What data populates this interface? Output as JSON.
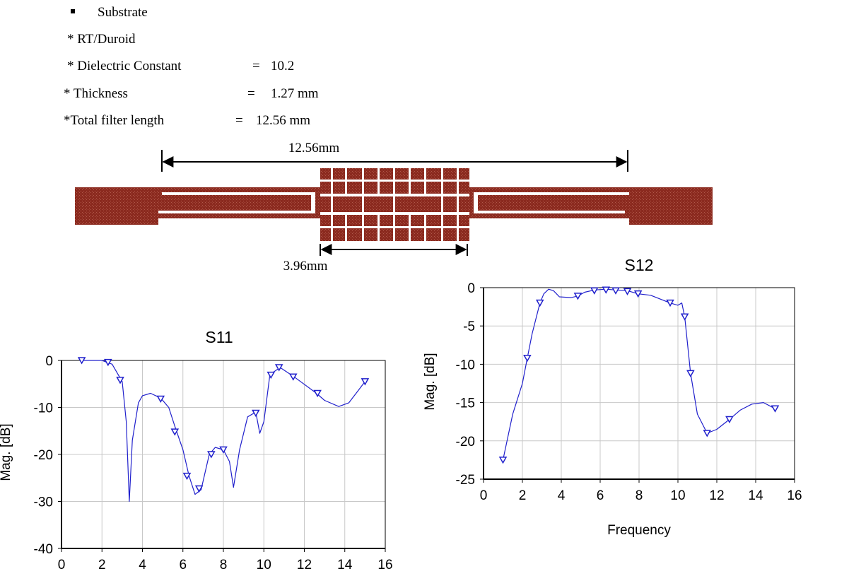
{
  "specs": {
    "heading": "Substrate",
    "rows": [
      {
        "label": "* RT/Duroid",
        "eq": "",
        "value": ""
      },
      {
        "label": "* Dielectric Constant",
        "eq": "=",
        "value": "10.2"
      },
      {
        "label": "* Thickness",
        "eq": "=",
        "value": "1.27 mm"
      },
      {
        "label": "*Total filter length",
        "eq": "=",
        "value": "12.56 mm"
      }
    ]
  },
  "layout": {
    "total_length_label": "12.56mm",
    "center_length_label": "3.96mm",
    "trace_color": "#8B2A1F"
  },
  "chart_data": [
    {
      "type": "line",
      "title": "S11",
      "xlabel": "",
      "ylabel": "Mag. [dB]",
      "xlim": [
        0,
        16
      ],
      "ylim": [
        -40,
        0
      ],
      "xticks": [
        "0",
        "2",
        "4",
        "6",
        "8",
        "10",
        "12",
        "14",
        "16"
      ],
      "yticks": [
        "0",
        "-10",
        "-20",
        "-30",
        "-40"
      ],
      "grid": true,
      "color": "#2020CC",
      "x": [
        1.0,
        2.0,
        2.5,
        3.0,
        3.2,
        3.35,
        3.5,
        3.8,
        4.0,
        4.4,
        4.9,
        5.3,
        5.6,
        6.0,
        6.3,
        6.6,
        6.9,
        7.3,
        7.6,
        8.0,
        8.3,
        8.5,
        8.8,
        9.2,
        9.6,
        9.8,
        10.0,
        10.3,
        10.8,
        11.5,
        12.6,
        13.0,
        13.7,
        14.2,
        15.0
      ],
      "y": [
        0,
        0,
        -0.8,
        -4.5,
        -13,
        -30,
        -17,
        -9,
        -7.5,
        -7,
        -8,
        -10,
        -14,
        -19,
        -24.5,
        -28.5,
        -27.5,
        -20,
        -18.5,
        -19,
        -21.5,
        -27,
        -19,
        -12,
        -11,
        -15.5,
        -13,
        -3,
        -1.5,
        -3.5,
        -7,
        -8.5,
        -9.8,
        -9,
        -4.5
      ],
      "markers_x": [
        1.0,
        2.3,
        2.9,
        4.9,
        5.6,
        6.2,
        6.8,
        7.4,
        8.0,
        9.6,
        10.35,
        10.75,
        11.45,
        12.65,
        15.0
      ],
      "markers_y": [
        0,
        -0.4,
        -4.2,
        -8.2,
        -15.2,
        -24.6,
        -27.3,
        -20,
        -19,
        -11.2,
        -3.1,
        -1.5,
        -3.5,
        -7,
        -4.5
      ]
    },
    {
      "type": "line",
      "title": "S12",
      "xlabel": "Frequency",
      "ylabel": "Mag. [dB]",
      "xlim": [
        0,
        16
      ],
      "ylim": [
        -25,
        0
      ],
      "xticks": [
        "0",
        "2",
        "4",
        "6",
        "8",
        "10",
        "12",
        "14",
        "16"
      ],
      "yticks": [
        "0",
        "-5",
        "-10",
        "-15",
        "-20",
        "-25"
      ],
      "grid": true,
      "color": "#2020CC",
      "x": [
        1.0,
        1.5,
        2.0,
        2.25,
        2.5,
        2.9,
        3.1,
        3.35,
        3.6,
        3.9,
        4.5,
        4.85,
        5.2,
        5.7,
        6.3,
        6.8,
        7.4,
        7.95,
        8.6,
        9.6,
        10.0,
        10.2,
        10.35,
        10.65,
        11.0,
        11.5,
        12.0,
        12.65,
        13.2,
        13.8,
        14.4,
        15.0
      ],
      "y": [
        -22.5,
        -16.5,
        -12.5,
        -9.2,
        -6,
        -2,
        -0.8,
        -0.2,
        -0.4,
        -1.2,
        -1.3,
        -1.1,
        -0.6,
        -0.3,
        -0.2,
        -0.3,
        -0.4,
        -0.8,
        -1.0,
        -2.0,
        -2.3,
        -2.0,
        -3.8,
        -11.2,
        -16.5,
        -19,
        -18.5,
        -17.2,
        -16,
        -15.2,
        -15,
        -15.8
      ],
      "markers_x": [
        1.0,
        2.25,
        2.9,
        4.85,
        5.7,
        6.3,
        6.8,
        7.4,
        7.95,
        9.6,
        10.35,
        10.65,
        11.5,
        12.65,
        15.0
      ],
      "markers_y": [
        -22.5,
        -9.2,
        -2,
        -1.1,
        -0.4,
        -0.3,
        -0.4,
        -0.5,
        -0.8,
        -2.0,
        -3.8,
        -11.2,
        -19,
        -17.2,
        -15.8
      ]
    }
  ]
}
